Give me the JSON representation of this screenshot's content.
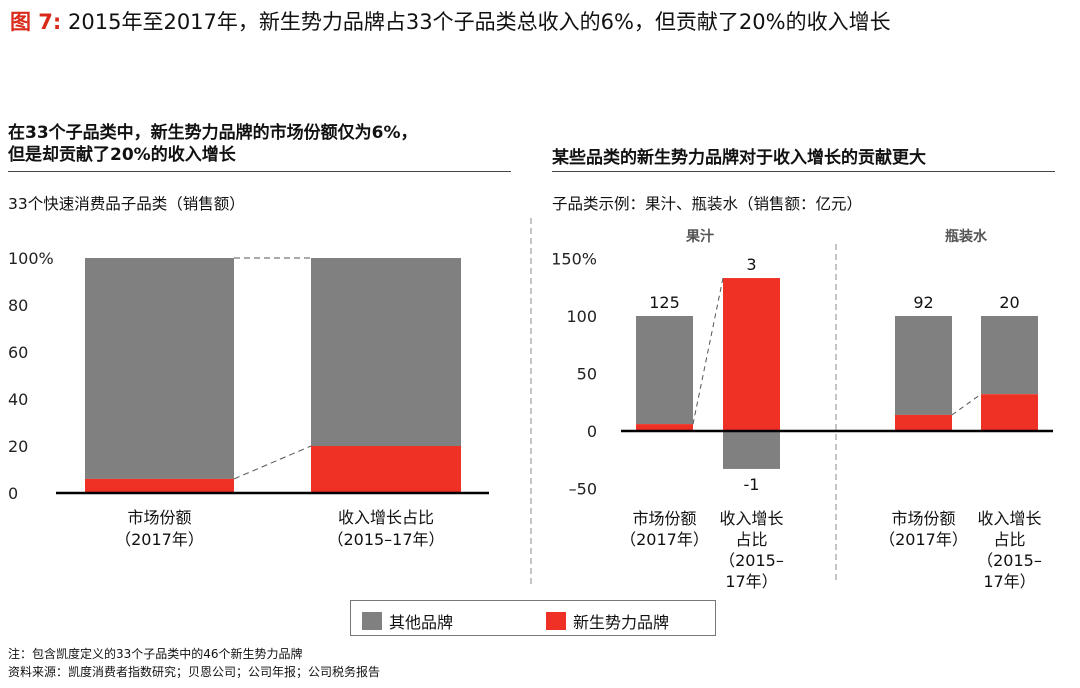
{
  "figure": {
    "label": "图 7:",
    "title": "2015年至2017年，新生势力品牌占33个子品类总收入的6%，但贡献了20%的收入增长"
  },
  "left_panel": {
    "heading_line1": "在33个子品类中，新生势力品牌的市场份额仅为6%，",
    "heading_line2": "但是却贡献了20%的收入增长",
    "subheading": "33个快速消费品子品类（销售额）"
  },
  "right_panel": {
    "heading": "某些品类的新生势力品牌对于收入增长的贡献更大",
    "subheading": "子品类示例：果汁、瓶装水（销售额：亿元）"
  },
  "legend": {
    "items": [
      {
        "label": "其他品牌",
        "color": "#808080"
      },
      {
        "label": "新生势力品牌",
        "color": "#ee3124"
      }
    ]
  },
  "colors": {
    "other": "#808080",
    "new": "#ee3124",
    "accent": "#d92a1c"
  },
  "notes": {
    "note": "注：包含凯度定义的33个子品类中的46个新生势力品牌",
    "source": "资料来源：凯度消费者指数研究；贝恩公司；公司年报；公司税务报告"
  },
  "chart_data": [
    {
      "type": "bar",
      "stacked": true,
      "categories": [
        {
          "line1": "市场份额",
          "line2": "（2017年）"
        },
        {
          "line1": "收入增长占比",
          "line2": "（2015–17年）"
        }
      ],
      "series": [
        {
          "name": "其他品牌",
          "values": [
            94,
            80
          ]
        },
        {
          "name": "新生势力品牌",
          "values": [
            6,
            20
          ]
        }
      ],
      "yticks": [
        "100%",
        "80",
        "60",
        "40",
        "20",
        "0"
      ],
      "ylim": [
        0,
        100
      ]
    },
    {
      "type": "bar",
      "stacked": true,
      "groups": [
        {
          "name": "果汁",
          "categories": [
            {
              "lines": [
                "市场份额",
                "（2017年）"
              ],
              "label": "125",
              "other": 94,
              "new": 6
            },
            {
              "lines": [
                "收入增长",
                "占比",
                "（2015–",
                "17年）"
              ],
              "label_top": "3",
              "label_bottom": "-1",
              "other": -33,
              "new": 133
            }
          ]
        },
        {
          "name": "瓶装水",
          "categories": [
            {
              "lines": [
                "市场份额",
                "（2017年）"
              ],
              "label": "92",
              "other": 86,
              "new": 14
            },
            {
              "lines": [
                "收入增长",
                "占比",
                "（2015–",
                "17年）"
              ],
              "label": "20",
              "other": 68,
              "new": 32
            }
          ]
        }
      ],
      "yticks": [
        "150%",
        "100",
        "50",
        "0",
        "–50"
      ],
      "ylim": [
        -50,
        150
      ]
    }
  ]
}
